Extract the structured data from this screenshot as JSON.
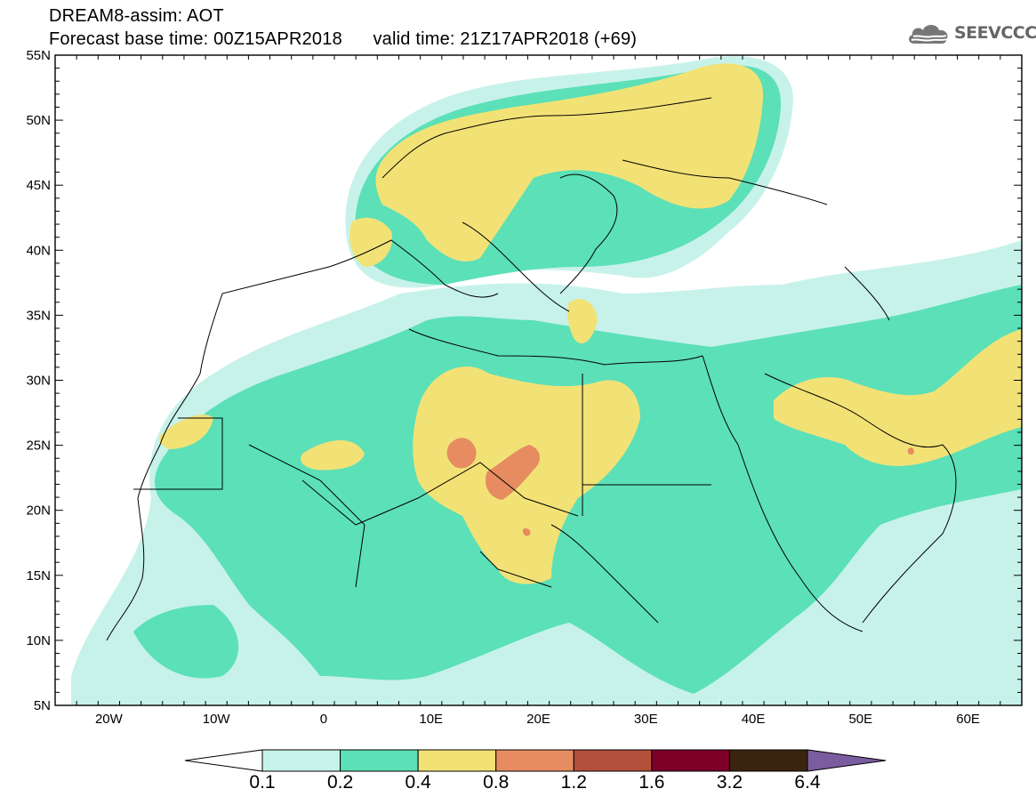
{
  "header": {
    "model_line": "DREAM8-assim: AOT",
    "base_time_line": "Forecast base time: 00Z15APR2018      valid time: 21Z17APR2018 (+69)"
  },
  "logo": {
    "text": "SEEVCCC",
    "icon": "cloud-icon"
  },
  "map": {
    "lon_labels": [
      "20W",
      "10W",
      "0",
      "10E",
      "20E",
      "30E",
      "40E",
      "50E",
      "60E"
    ],
    "lat_labels": [
      "55N",
      "50N",
      "45N",
      "40N",
      "35N",
      "30N",
      "25N",
      "20N",
      "15N",
      "10N",
      "5N"
    ],
    "lon_range": [
      -25,
      65
    ],
    "lat_range": [
      5,
      55
    ]
  },
  "colorbar": {
    "labels": [
      "0.1",
      "0.2",
      "0.4",
      "0.8",
      "1.2",
      "1.6",
      "3.2",
      "6.4"
    ],
    "colors": [
      "#c7f2ea",
      "#5ce0b8",
      "#f2e276",
      "#e68c60",
      "#b3503c",
      "#7d0028",
      "#3a2410",
      "#7c5ca0"
    ],
    "under_color": "#ffffff"
  },
  "levels": {
    "c01": "#c7f2ea",
    "c02": "#5ce0b8",
    "c04": "#f2e276",
    "c08": "#e68c60"
  }
}
